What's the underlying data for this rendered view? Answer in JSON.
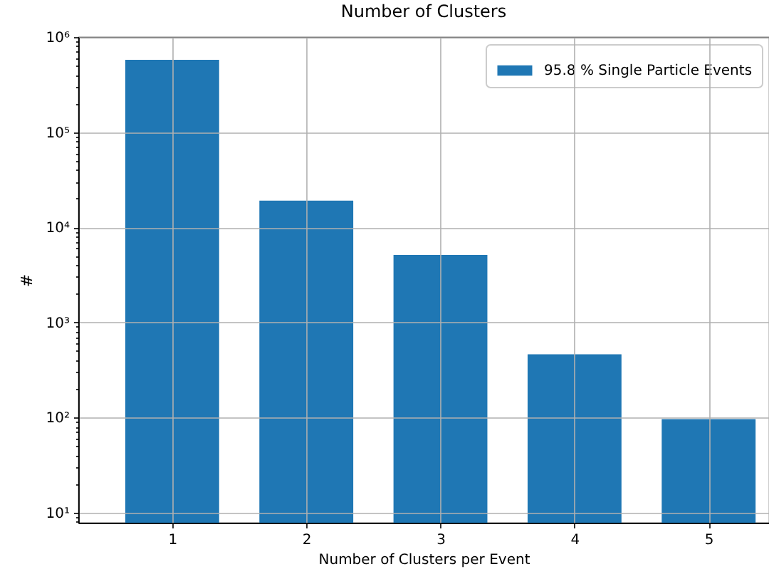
{
  "chart_data": {
    "type": "bar",
    "title": "Number of Clusters",
    "xlabel": "Number of Clusters per Event",
    "ylabel": "#",
    "x": [
      1,
      2,
      3,
      4,
      5
    ],
    "series": [
      {
        "name": "95.8 % Single Particle Events",
        "color": "#1f77b4",
        "values": [
          575000,
          19000,
          5100,
          460,
          96
        ]
      }
    ],
    "xlim": [
      0.3,
      5.45
    ],
    "xticks": [
      1,
      2,
      3,
      4,
      5
    ],
    "ylim": [
      7.8,
      1000000
    ],
    "yticks": [
      {
        "value": 8,
        "label": null
      },
      {
        "value": 9,
        "label": null
      },
      {
        "value": 10,
        "label": "10¹"
      },
      {
        "value": 20,
        "label": null
      },
      {
        "value": 30,
        "label": null
      },
      {
        "value": 40,
        "label": null
      },
      {
        "value": 50,
        "label": null
      },
      {
        "value": 60,
        "label": null
      },
      {
        "value": 70,
        "label": null
      },
      {
        "value": 80,
        "label": null
      },
      {
        "value": 90,
        "label": null
      },
      {
        "value": 100,
        "label": "10²"
      },
      {
        "value": 200,
        "label": null
      },
      {
        "value": 300,
        "label": null
      },
      {
        "value": 400,
        "label": null
      },
      {
        "value": 500,
        "label": null
      },
      {
        "value": 600,
        "label": null
      },
      {
        "value": 700,
        "label": null
      },
      {
        "value": 800,
        "label": null
      },
      {
        "value": 900,
        "label": null
      },
      {
        "value": 1000,
        "label": "10³"
      },
      {
        "value": 2000,
        "label": null
      },
      {
        "value": 3000,
        "label": null
      },
      {
        "value": 4000,
        "label": null
      },
      {
        "value": 5000,
        "label": null
      },
      {
        "value": 6000,
        "label": null
      },
      {
        "value": 7000,
        "label": null
      },
      {
        "value": 8000,
        "label": null
      },
      {
        "value": 9000,
        "label": null
      },
      {
        "value": 10000,
        "label": "10⁴"
      },
      {
        "value": 20000,
        "label": null
      },
      {
        "value": 30000,
        "label": null
      },
      {
        "value": 40000,
        "label": null
      },
      {
        "value": 50000,
        "label": null
      },
      {
        "value": 60000,
        "label": null
      },
      {
        "value": 70000,
        "label": null
      },
      {
        "value": 80000,
        "label": null
      },
      {
        "value": 90000,
        "label": null
      },
      {
        "value": 100000,
        "label": "10⁵"
      },
      {
        "value": 200000,
        "label": null
      },
      {
        "value": 300000,
        "label": null
      },
      {
        "value": 400000,
        "label": null
      },
      {
        "value": 500000,
        "label": null
      },
      {
        "value": 600000,
        "label": null
      },
      {
        "value": 700000,
        "label": null
      },
      {
        "value": 800000,
        "label": null
      },
      {
        "value": 900000,
        "label": null
      },
      {
        "value": 1000000,
        "label": "10⁶"
      }
    ],
    "log": true,
    "grid": true,
    "legend": "top right"
  }
}
